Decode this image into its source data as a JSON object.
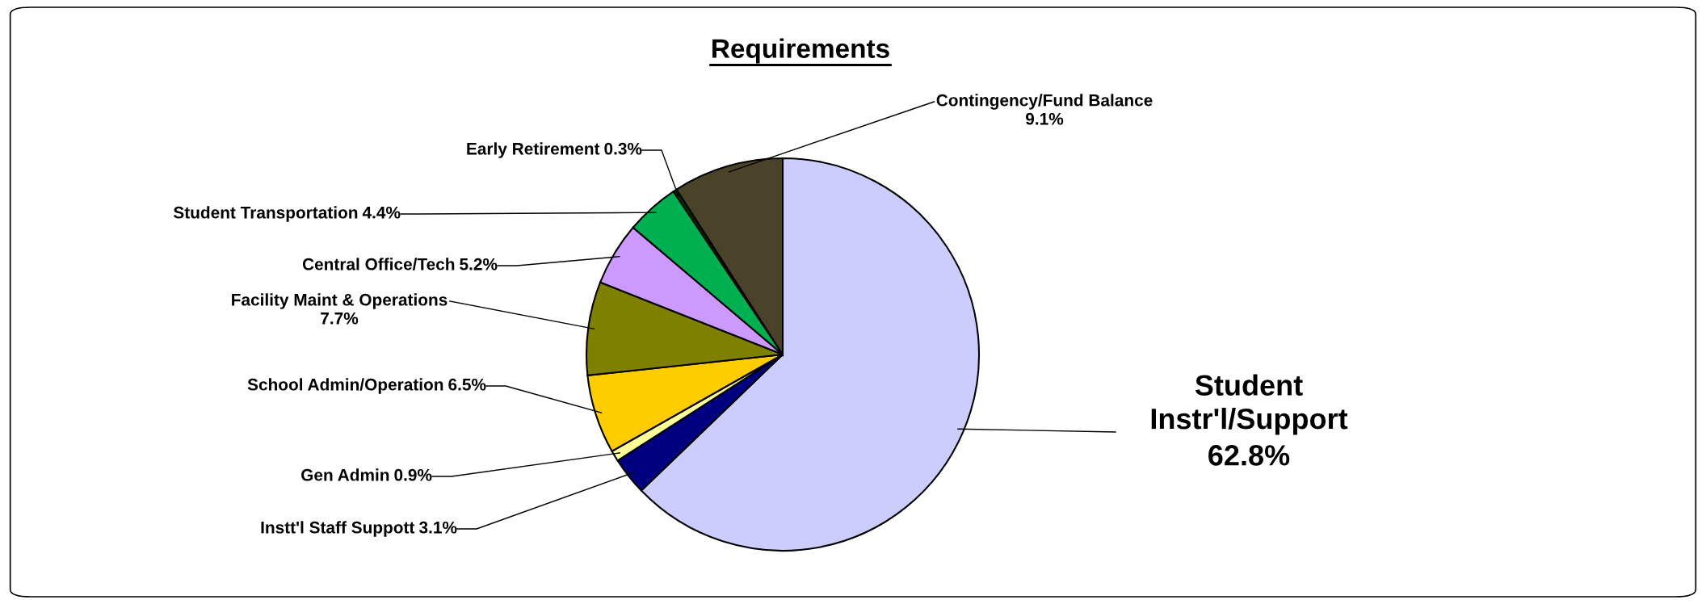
{
  "chart_data": {
    "type": "pie",
    "title": "Requirements",
    "categories": [
      "Student Instr'l/Support",
      "Instt'l Staff Suppott",
      "Gen Admin",
      "School Admin/Operation",
      "Facility Maint & Operations",
      "Central Office/Tech",
      "Student Transportation",
      "Early Retirement",
      "Contingency/Fund Balance"
    ],
    "values": [
      62.8,
      3.1,
      0.9,
      6.5,
      7.7,
      5.2,
      4.4,
      0.3,
      9.1
    ],
    "colors": [
      "#ccccff",
      "#000080",
      "#ffff99",
      "#ffcc00",
      "#808000",
      "#cc99ff",
      "#00b050",
      "#003300",
      "#4a432a"
    ],
    "value_labels": [
      "62.8%",
      "3.1%",
      "0.9%",
      "6.5%",
      "7.7%",
      "5.2%",
      "4.4%",
      "0.3%",
      "9.1%"
    ]
  }
}
